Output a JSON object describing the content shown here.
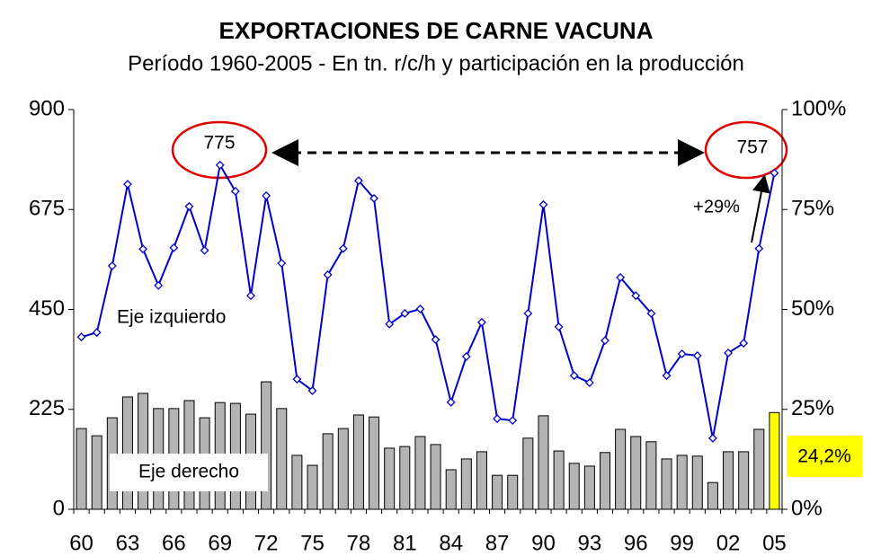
{
  "chart_data": {
    "type": "bar_line",
    "title": "EXPORTACIONES DE CARNE VACUNA",
    "subtitle": "Período 1960-2005 - En tn. r/c/h y participación en la producción",
    "categories": [
      "60",
      null,
      null,
      "63",
      null,
      null,
      "66",
      null,
      null,
      "69",
      null,
      null,
      "72",
      null,
      null,
      "75",
      null,
      null,
      "78",
      null,
      null,
      "81",
      null,
      null,
      "84",
      null,
      null,
      "87",
      null,
      null,
      "90",
      null,
      null,
      "93",
      null,
      null,
      "96",
      null,
      null,
      "99",
      null,
      null,
      "02",
      null,
      null,
      "05"
    ],
    "ylim": [
      0,
      900
    ],
    "yticks": [
      0,
      225,
      450,
      675,
      900
    ],
    "y2lim": [
      0,
      100
    ],
    "y2ticks": [
      {
        "value": 0,
        "label": "0%"
      },
      {
        "value": 25,
        "label": "25%"
      },
      {
        "value": 50,
        "label": "50%"
      },
      {
        "value": 75,
        "label": "75%"
      },
      {
        "value": 100,
        "label": "100%"
      }
    ],
    "series": [
      {
        "name": "Eje derecho",
        "type": "bar",
        "axis": "y2",
        "color": "#b4b4b4",
        "highlight_color": "#ffff00",
        "values": [
          20.2,
          18.4,
          22.9,
          28.1,
          29.0,
          25.2,
          25.2,
          27.2,
          22.9,
          26.7,
          26.5,
          23.8,
          31.9,
          25.2,
          13.5,
          11.0,
          18.9,
          20.2,
          23.6,
          23.1,
          15.3,
          15.7,
          18.2,
          16.2,
          9.9,
          12.6,
          14.4,
          8.5,
          8.5,
          17.8,
          23.4,
          14.6,
          11.5,
          10.8,
          14.2,
          20.0,
          18.2,
          16.9,
          12.6,
          13.5,
          13.3,
          6.7,
          14.4,
          14.4,
          20.0,
          24.2
        ],
        "value_labels": [
          null,
          null,
          null,
          null,
          null,
          null,
          null,
          null,
          null,
          null,
          null,
          null,
          null,
          null,
          null,
          null,
          null,
          null,
          null,
          null,
          null,
          null,
          null,
          null,
          null,
          null,
          null,
          null,
          null,
          null,
          null,
          null,
          null,
          null,
          null,
          null,
          null,
          null,
          null,
          null,
          null,
          null,
          null,
          null,
          null,
          "24,2%"
        ]
      },
      {
        "name": "Eje izquierdo",
        "type": "line",
        "color": "#0000cc",
        "values": [
          388,
          398,
          548,
          732,
          586,
          504,
          589,
          682,
          583,
          775,
          716,
          481,
          706,
          554,
          293,
          267,
          528,
          587,
          740,
          700,
          417,
          441,
          451,
          382,
          241,
          344,
          421,
          204,
          200,
          441,
          686,
          411,
          301,
          285,
          380,
          522,
          481,
          441,
          301,
          350,
          346,
          160,
          352,
          374,
          587,
          757
        ]
      }
    ],
    "annotations": [
      {
        "text": "+29%"
      }
    ]
  }
}
